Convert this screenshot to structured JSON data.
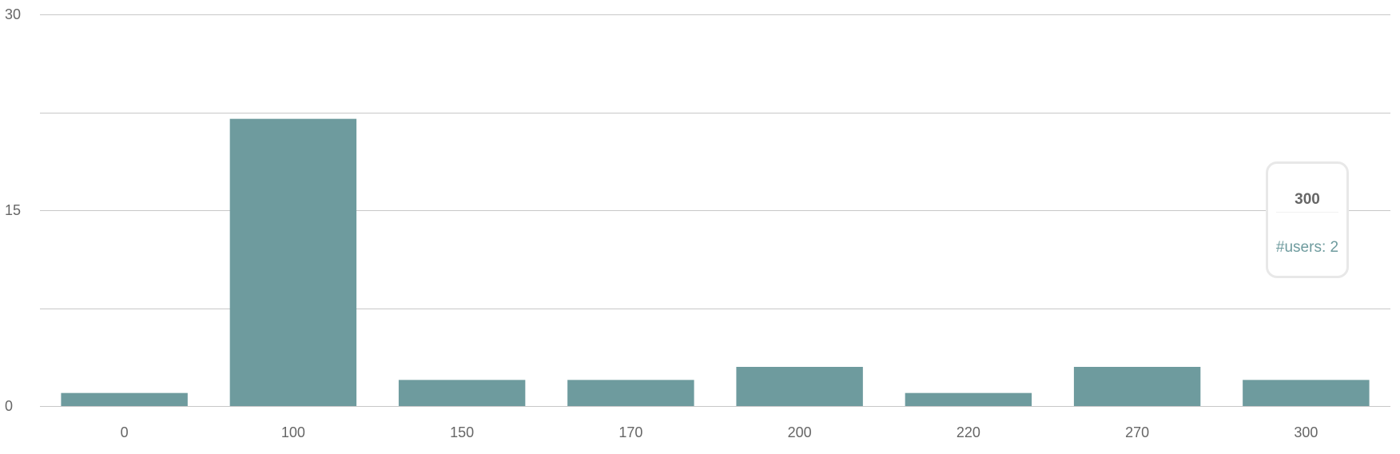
{
  "chart_data": {
    "type": "bar",
    "categories": [
      "0",
      "100",
      "150",
      "170",
      "200",
      "220",
      "270",
      "300"
    ],
    "series": [
      {
        "name": "#users",
        "values": [
          1,
          22,
          2,
          2,
          3,
          1,
          3,
          2
        ]
      }
    ],
    "title": "",
    "xlabel": "",
    "ylabel": "",
    "ylim": [
      0,
      30
    ],
    "yticks": [
      "0",
      "15",
      "30"
    ],
    "grid": true,
    "gridlines": [
      0,
      7.5,
      15,
      22.5,
      30
    ],
    "legend": "none",
    "bar_color": "#6e9b9e",
    "grid_color": "#c8c8c8"
  },
  "tooltip": {
    "title": "300",
    "item": "#users: 2",
    "item_color": "#6e9b9e"
  }
}
